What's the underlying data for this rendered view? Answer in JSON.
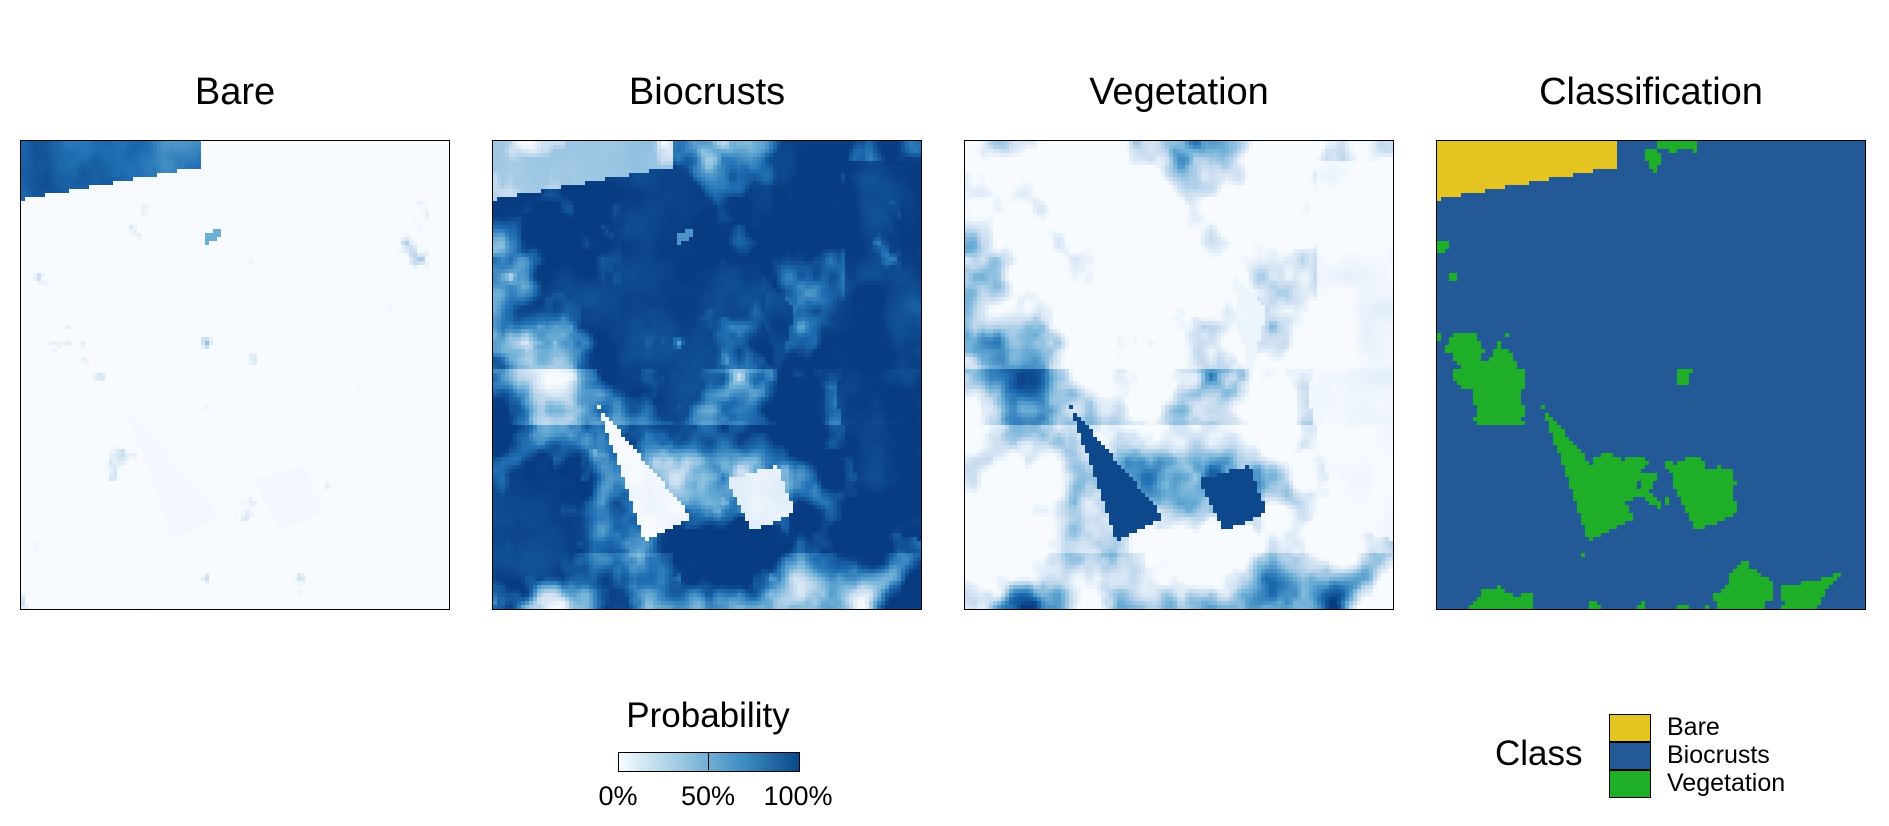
{
  "panels": [
    {
      "title": "Bare",
      "kind": "probability",
      "class_index": 0
    },
    {
      "title": "Biocrusts",
      "kind": "probability",
      "class_index": 1
    },
    {
      "title": "Vegetation",
      "kind": "probability",
      "class_index": 2
    },
    {
      "title": "Classification",
      "kind": "classification"
    }
  ],
  "probability_legend": {
    "title": "Probability",
    "labels": [
      "0%",
      "50%",
      "100%"
    ],
    "colors": [
      "#f7fbff",
      "#9ecae1",
      "#4292c6",
      "#084a8a"
    ]
  },
  "class_legend": {
    "title": "Class",
    "items": [
      {
        "label": "Bare",
        "color": "#e3c420"
      },
      {
        "label": "Biocrusts",
        "color": "#235997"
      },
      {
        "label": "Vegetation",
        "color": "#1fae27"
      }
    ]
  }
}
